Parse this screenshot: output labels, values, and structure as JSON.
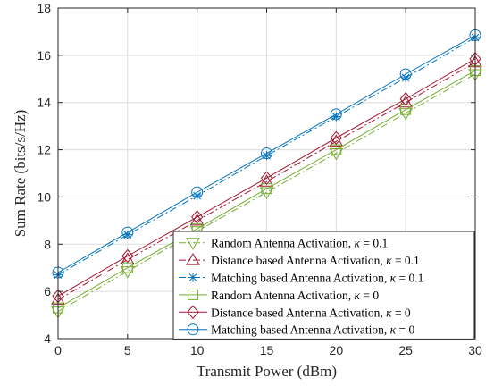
{
  "chart_data": {
    "type": "line",
    "xlabel": "Transmit Power (dBm)",
    "ylabel": "Sum Rate (bits/s/Hz)",
    "xlim": [
      0,
      30
    ],
    "ylim": [
      4,
      18
    ],
    "xticks": [
      0,
      5,
      10,
      15,
      20,
      25,
      30
    ],
    "yticks": [
      4,
      6,
      8,
      10,
      12,
      14,
      16,
      18
    ],
    "grid": true,
    "legend_position": "bottom-right",
    "x": [
      0,
      5,
      10,
      15,
      20,
      25,
      30
    ],
    "series": [
      {
        "name": "Random Antenna Activation, κ = 0.1",
        "label_main": "Random Antenna Activation, ",
        "kappa": "0.1",
        "color": "#77AC30",
        "marker": "triangle-down",
        "dash": "dashdot",
        "values": [
          5.15,
          6.85,
          8.55,
          10.2,
          11.85,
          13.55,
          15.2
        ]
      },
      {
        "name": "Distance based Antenna Activation, κ = 0.1",
        "label_main": "Distance based Antenna Activation, ",
        "kappa": "0.1",
        "color": "#A2142F",
        "marker": "triangle-up",
        "dash": "dashdot",
        "values": [
          5.65,
          7.35,
          9.0,
          10.65,
          12.35,
          14.0,
          15.7
        ]
      },
      {
        "name": "Matching based Antenna Activation, κ = 0.1",
        "label_main": "Matching based Antenna Activation, ",
        "kappa": "0.1",
        "color": "#0072BD",
        "marker": "asterisk",
        "dash": "dashdot",
        "values": [
          6.7,
          8.4,
          10.05,
          11.75,
          13.4,
          15.05,
          16.75
        ]
      },
      {
        "name": "Random Antenna Activation, κ = 0",
        "label_main": "Random Antenna Activation, ",
        "kappa": "0",
        "color": "#77AC30",
        "marker": "square",
        "dash": "solid",
        "values": [
          5.3,
          7.0,
          8.65,
          10.35,
          12.0,
          13.7,
          15.35
        ]
      },
      {
        "name": "Distance based Antenna Activation, κ = 0",
        "label_main": "Distance based Antenna Activation, ",
        "kappa": "0",
        "color": "#A2142F",
        "marker": "diamond",
        "dash": "solid",
        "values": [
          5.8,
          7.5,
          9.15,
          10.8,
          12.5,
          14.15,
          15.85
        ]
      },
      {
        "name": "Matching based Antenna Activation, κ = 0",
        "label_main": "Matching based Antenna Activation, ",
        "kappa": "0",
        "color": "#0072BD",
        "marker": "circle",
        "dash": "solid",
        "values": [
          6.8,
          8.5,
          10.2,
          11.85,
          13.5,
          15.2,
          16.85
        ]
      }
    ]
  }
}
